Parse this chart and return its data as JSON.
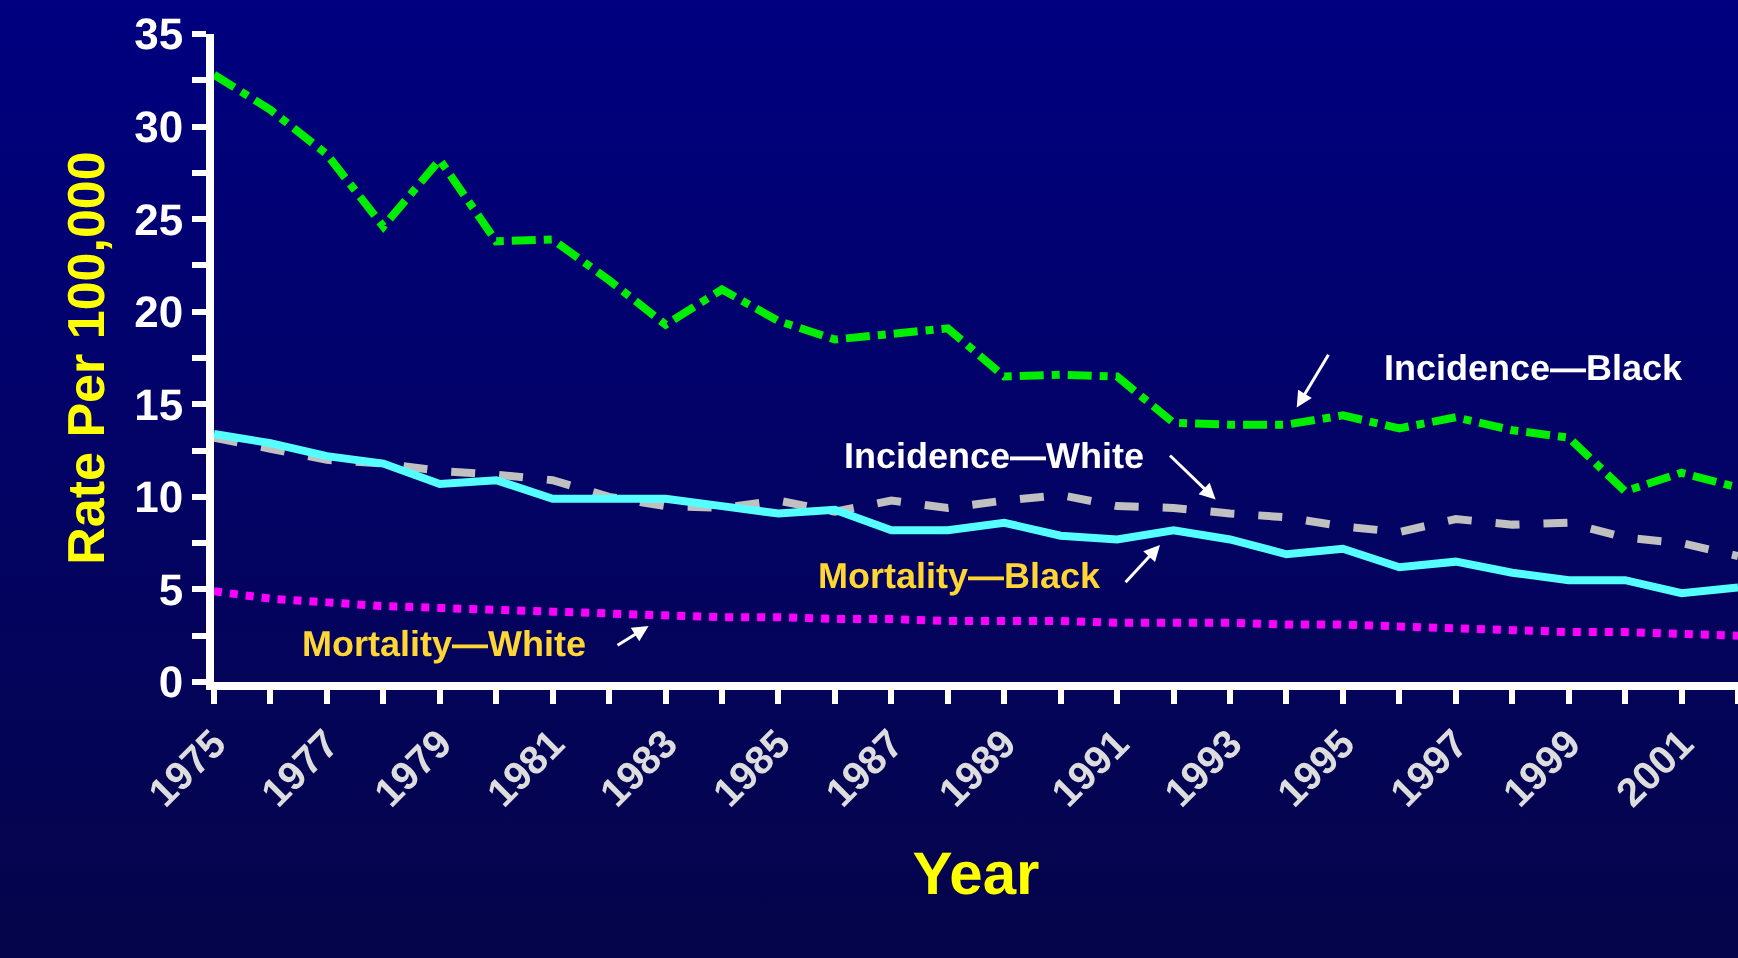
{
  "chart_data": {
    "type": "line",
    "xlabel": "Year",
    "ylabel": "Rate Per 100,000",
    "x": [
      1975,
      1976,
      1977,
      1978,
      1979,
      1980,
      1981,
      1982,
      1983,
      1984,
      1985,
      1986,
      1987,
      1988,
      1989,
      1990,
      1991,
      1992,
      1993,
      1994,
      1995,
      1996,
      1997,
      1998,
      1999,
      2000,
      2001,
      2002
    ],
    "series": [
      {
        "name": "Incidence—Black",
        "color": "#00ee00",
        "line_style": "dashdot",
        "values": [
          32.8,
          30.9,
          28.5,
          24.6,
          28.2,
          23.8,
          23.9,
          21.7,
          19.3,
          21.2,
          19.5,
          18.5,
          18.8,
          19.1,
          16.5,
          16.6,
          16.5,
          14.0,
          13.9,
          13.9,
          14.4,
          13.7,
          14.3,
          13.6,
          13.2,
          10.3,
          11.3,
          10.5
        ]
      },
      {
        "name": "Incidence—White",
        "color": "#c0c0c0",
        "line_style": "dashed",
        "values": [
          13.2,
          12.6,
          12.0,
          11.8,
          11.4,
          11.2,
          10.9,
          10.0,
          9.5,
          9.4,
          9.8,
          9.2,
          9.8,
          9.4,
          9.8,
          10.1,
          9.5,
          9.4,
          9.1,
          8.9,
          8.4,
          8.1,
          8.8,
          8.5,
          8.6,
          7.8,
          7.5,
          6.8
        ]
      },
      {
        "name": "Mortality—Black",
        "color": "#55ffff",
        "line_style": "solid",
        "values": [
          13.4,
          12.9,
          12.2,
          11.8,
          10.7,
          10.9,
          9.9,
          9.9,
          9.9,
          9.5,
          9.1,
          9.3,
          8.2,
          8.2,
          8.6,
          7.9,
          7.7,
          8.2,
          7.7,
          6.9,
          7.2,
          6.2,
          6.5,
          5.9,
          5.5,
          5.5,
          4.8,
          5.1
        ]
      },
      {
        "name": "Mortality—White",
        "color": "#ff00ff",
        "line_style": "dotted",
        "values": [
          4.9,
          4.5,
          4.3,
          4.1,
          4.0,
          3.9,
          3.8,
          3.7,
          3.6,
          3.5,
          3.5,
          3.4,
          3.4,
          3.3,
          3.3,
          3.3,
          3.2,
          3.2,
          3.2,
          3.1,
          3.1,
          3.0,
          2.9,
          2.8,
          2.7,
          2.7,
          2.6,
          2.5
        ]
      }
    ],
    "xlim": [
      1975,
      2002
    ],
    "xticks": [
      1975,
      {
        "value": 1976,
        "label": null
      },
      1977,
      {
        "value": 1978,
        "label": null
      },
      1979,
      {
        "value": 1980,
        "label": null
      },
      1981,
      {
        "value": 1982,
        "label": null
      },
      1983,
      {
        "value": 1984,
        "label": null
      },
      1985,
      {
        "value": 1986,
        "label": null
      },
      1987,
      {
        "value": 1988,
        "label": null
      },
      1989,
      {
        "value": 1990,
        "label": null
      },
      1991,
      {
        "value": 1992,
        "label": null
      },
      1993,
      {
        "value": 1994,
        "label": null
      },
      1995,
      {
        "value": 1996,
        "label": null
      },
      1997,
      {
        "value": 1998,
        "label": null
      },
      1999,
      {
        "value": 2000,
        "label": null
      },
      2001,
      {
        "value": 2002,
        "label": null
      }
    ],
    "ylim": [
      0,
      35
    ],
    "yticks": [
      0,
      {
        "value": 2.5,
        "label": null
      },
      5,
      {
        "value": 7.5,
        "label": null
      },
      10,
      {
        "value": 12.5,
        "label": null
      },
      15,
      {
        "value": 17.5,
        "label": null
      },
      20,
      {
        "value": 22.5,
        "label": null
      },
      25,
      {
        "value": 27.5,
        "label": null
      },
      30,
      {
        "value": 32.5,
        "label": null
      },
      35
    ],
    "grid": false,
    "legend": false,
    "marker": "none"
  }
}
